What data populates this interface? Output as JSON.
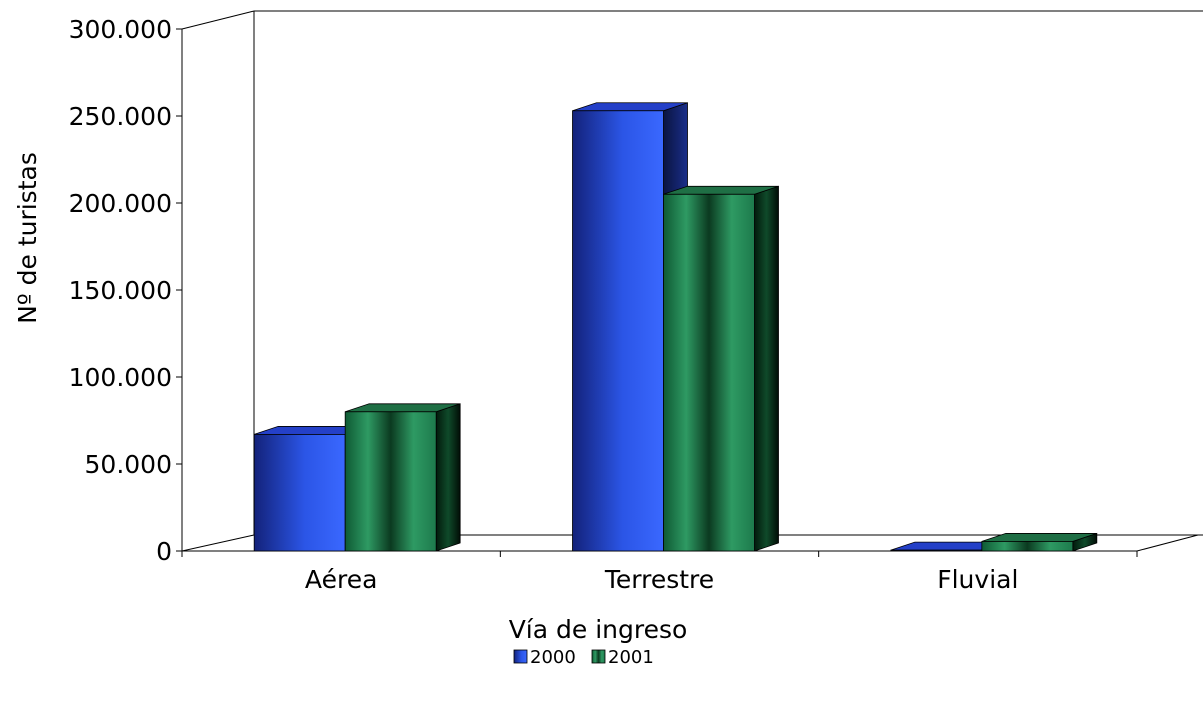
{
  "chart_data": {
    "type": "bar",
    "title": "",
    "xlabel": "Vía de ingreso",
    "ylabel": "Nº de turistas",
    "categories": [
      "Aérea",
      "Terrestre",
      "Fluvial"
    ],
    "series": [
      {
        "name": "2000",
        "values": [
          67000,
          253000,
          500
        ]
      },
      {
        "name": "2001",
        "values": [
          80000,
          205000,
          5500
        ]
      }
    ],
    "ylim": [
      0,
      300000
    ],
    "yticks": [
      0,
      50000,
      100000,
      150000,
      200000,
      250000,
      300000
    ],
    "ytick_labels": [
      "0",
      "50.000",
      "100.000",
      "150.000",
      "200.000",
      "250.000",
      "300.000"
    ],
    "legend_position": "bottom",
    "grid": false,
    "colors": {
      "2000": "#2f5cf0",
      "2001": "#2e8b57"
    },
    "style": "3d-clustered"
  }
}
